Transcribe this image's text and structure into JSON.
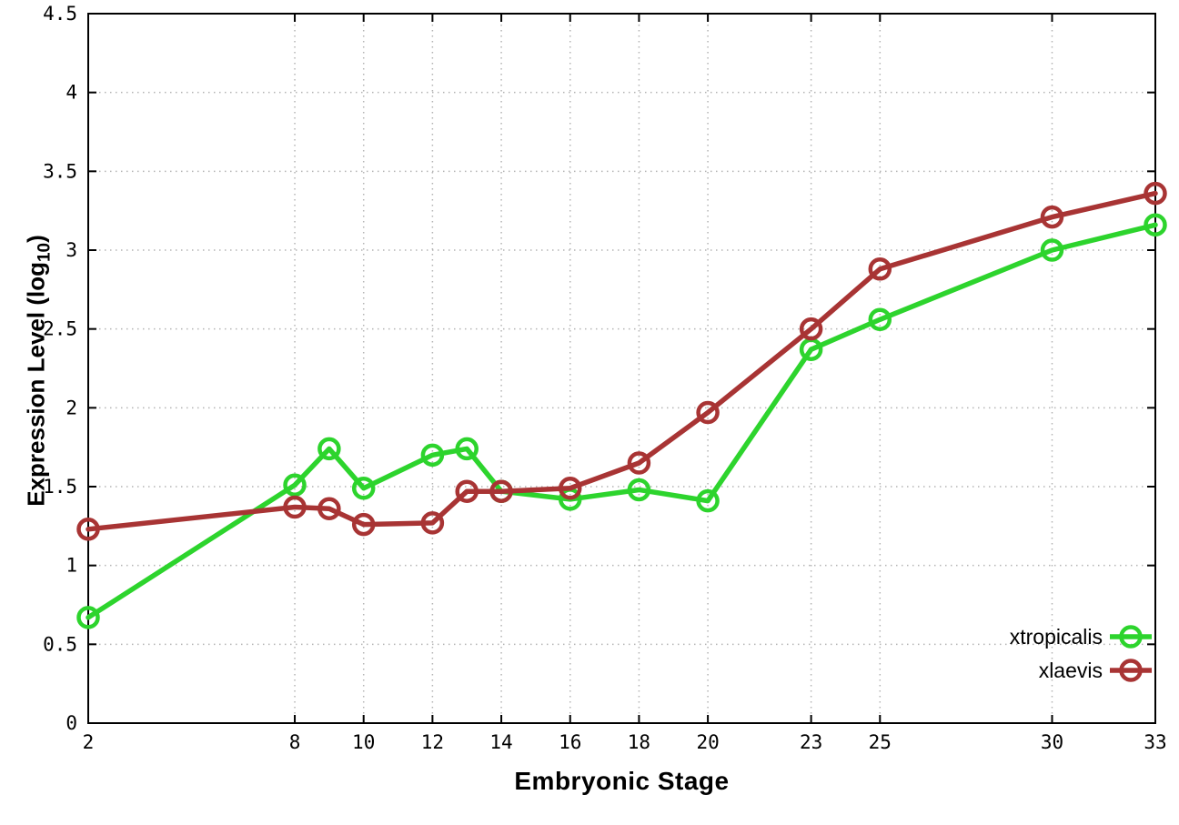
{
  "figure": {
    "background": "#ffffff"
  },
  "chart_data": {
    "type": "line",
    "title": "",
    "xlabel": "Embryonic Stage",
    "ylabel": {
      "prefix": "Expression Level (log",
      "sub": "10",
      "suffix": ")"
    },
    "xlim": [
      2,
      33
    ],
    "ylim": [
      0,
      4.5
    ],
    "xticks": [
      "2",
      "8",
      "10",
      "12",
      "14",
      "16",
      "18",
      "20",
      "23",
      "25",
      "30",
      "33"
    ],
    "yticks": [
      "0",
      "0.5",
      "1",
      "1.5",
      "2",
      "2.5",
      "3",
      "3.5",
      "4",
      "4.5"
    ],
    "grid": true,
    "grid_color": "#b4b4b4",
    "axis_color": "#000000",
    "legend": {
      "position": "inside-bottom-right",
      "entries": [
        "xtropicalis",
        "xlaevis"
      ]
    },
    "x": [
      2,
      8,
      9,
      10,
      12,
      13,
      14,
      16,
      18,
      20,
      23,
      25,
      30,
      33
    ],
    "series": [
      {
        "name": "xtropicalis",
        "color": "#2dd42d",
        "marker": "open-circle",
        "values": [
          0.67,
          1.51,
          1.74,
          1.49,
          1.7,
          1.74,
          1.47,
          1.42,
          1.48,
          1.41,
          2.37,
          2.56,
          3.0,
          3.16
        ]
      },
      {
        "name": "xlaevis",
        "color": "#a83434",
        "marker": "open-circle",
        "values": [
          1.23,
          1.37,
          1.36,
          1.26,
          1.27,
          1.47,
          1.47,
          1.49,
          1.65,
          1.97,
          2.5,
          2.88,
          3.21,
          3.36
        ]
      }
    ]
  }
}
